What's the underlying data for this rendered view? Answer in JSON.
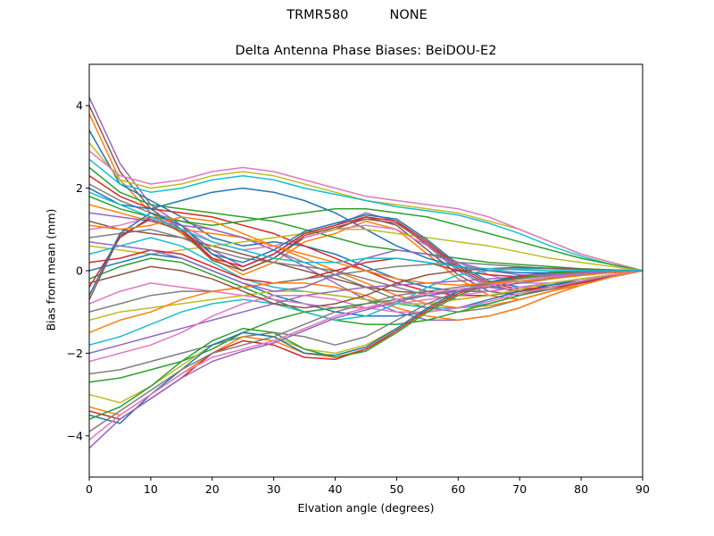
{
  "figure": {
    "suptitle": "TRMR580          NONE"
  },
  "chart_data": {
    "type": "line",
    "title": "Delta Antenna Phase Biases: BeiDOU-E2",
    "xlabel": "Elvation angle (degrees)",
    "ylabel": "Bias from mean (mm)",
    "xlim": [
      0,
      90
    ],
    "ylim": [
      -5,
      5
    ],
    "xticks": [
      0,
      10,
      20,
      30,
      40,
      50,
      60,
      70,
      80,
      90
    ],
    "yticks": [
      -4,
      -2,
      0,
      2,
      4
    ],
    "grid": false,
    "legend": "none",
    "x": [
      0,
      5,
      10,
      15,
      20,
      25,
      30,
      35,
      40,
      45,
      50,
      55,
      60,
      65,
      70,
      75,
      80,
      85,
      90
    ],
    "series": [
      {
        "values": [
          4.2,
          2.6,
          1.6,
          1.1,
          0.5,
          0.1,
          0.4,
          0.9,
          1.1,
          1.4,
          1.2,
          0.6,
          0.0,
          -0.4,
          -0.5,
          -0.4,
          -0.3,
          -0.15,
          0.0
        ],
        "color": "#9467bd"
      },
      {
        "values": [
          4.0,
          2.4,
          1.5,
          1.0,
          0.4,
          0.0,
          0.3,
          0.8,
          1.0,
          1.3,
          1.1,
          0.5,
          -0.1,
          -0.5,
          -0.6,
          -0.45,
          -0.3,
          -0.15,
          0.0
        ],
        "color": "#8c564b"
      },
      {
        "values": [
          3.8,
          2.2,
          1.4,
          0.9,
          0.3,
          -0.1,
          0.2,
          0.7,
          0.9,
          1.2,
          1.0,
          0.4,
          -0.2,
          -0.6,
          -0.7,
          -0.5,
          -0.35,
          -0.15,
          0.0
        ],
        "color": "#ff7f0e"
      },
      {
        "values": [
          3.4,
          2.1,
          1.7,
          1.3,
          0.8,
          0.6,
          0.7,
          0.6,
          0.4,
          0.1,
          -0.2,
          -0.4,
          -0.5,
          -0.5,
          -0.4,
          -0.3,
          -0.2,
          -0.1,
          0.0
        ],
        "color": "#1f77b4"
      },
      {
        "values": [
          3.1,
          2.2,
          2.0,
          2.1,
          2.3,
          2.4,
          2.3,
          2.1,
          1.9,
          1.7,
          1.6,
          1.5,
          1.4,
          1.2,
          1.0,
          0.7,
          0.4,
          0.2,
          0.0
        ],
        "color": "#bcbd22"
      },
      {
        "values": [
          2.9,
          2.3,
          2.1,
          2.2,
          2.4,
          2.5,
          2.4,
          2.2,
          2.0,
          1.8,
          1.7,
          1.6,
          1.5,
          1.3,
          1.0,
          0.7,
          0.4,
          0.2,
          0.0
        ],
        "color": "#e377c2"
      },
      {
        "values": [
          2.7,
          2.1,
          1.9,
          2.0,
          2.2,
          2.3,
          2.2,
          2.0,
          1.85,
          1.7,
          1.55,
          1.45,
          1.35,
          1.15,
          0.9,
          0.6,
          0.35,
          0.15,
          0.0
        ],
        "color": "#17becf"
      },
      {
        "values": [
          2.5,
          1.9,
          1.6,
          1.5,
          1.4,
          1.3,
          1.2,
          1.0,
          0.8,
          0.6,
          0.5,
          0.4,
          0.3,
          0.2,
          0.15,
          0.1,
          0.05,
          0.02,
          0.0
        ],
        "color": "#2ca02c"
      },
      {
        "values": [
          2.3,
          1.8,
          1.5,
          1.4,
          1.3,
          1.1,
          0.9,
          0.6,
          0.3,
          0.0,
          -0.3,
          -0.5,
          -0.6,
          -0.6,
          -0.5,
          -0.35,
          -0.2,
          -0.1,
          0.0
        ],
        "color": "#d62728"
      },
      {
        "values": [
          2.1,
          1.7,
          1.4,
          1.2,
          1.0,
          0.8,
          0.5,
          0.2,
          -0.1,
          -0.4,
          -0.7,
          -0.9,
          -1.0,
          -0.9,
          -0.7,
          -0.5,
          -0.3,
          -0.15,
          0.0
        ],
        "color": "#7f7f7f"
      },
      {
        "values": [
          2.0,
          1.6,
          1.5,
          1.7,
          1.9,
          2.0,
          1.9,
          1.7,
          1.4,
          1.0,
          0.6,
          0.3,
          0.1,
          0.0,
          -0.05,
          -0.05,
          -0.03,
          -0.01,
          0.0
        ],
        "color": "#1f77b4"
      },
      {
        "values": [
          1.8,
          1.5,
          1.3,
          1.2,
          1.1,
          1.2,
          1.3,
          1.4,
          1.5,
          1.5,
          1.4,
          1.3,
          1.1,
          0.9,
          0.7,
          0.5,
          0.3,
          0.15,
          0.0
        ],
        "color": "#2ca02c"
      },
      {
        "values": [
          1.6,
          1.4,
          1.2,
          1.0,
          0.9,
          0.8,
          0.6,
          0.3,
          0.0,
          -0.3,
          -0.6,
          -0.8,
          -0.9,
          -0.85,
          -0.7,
          -0.5,
          -0.3,
          -0.15,
          0.0
        ],
        "color": "#ff7f0e"
      },
      {
        "values": [
          1.4,
          1.3,
          1.2,
          1.1,
          1.0,
          0.8,
          0.5,
          0.1,
          -0.3,
          -0.7,
          -1.0,
          -1.2,
          -1.2,
          -1.1,
          -0.9,
          -0.6,
          -0.35,
          -0.15,
          0.0
        ],
        "color": "#9467bd"
      },
      {
        "values": [
          1.2,
          1.0,
          0.9,
          0.8,
          0.6,
          0.4,
          0.2,
          0.0,
          -0.2,
          -0.4,
          -0.5,
          -0.55,
          -0.5,
          -0.4,
          -0.3,
          -0.2,
          -0.1,
          -0.05,
          0.0
        ],
        "color": "#8c564b"
      },
      {
        "values": [
          1.0,
          1.1,
          1.3,
          1.1,
          0.7,
          0.5,
          0.6,
          0.8,
          1.0,
          1.1,
          1.0,
          0.6,
          0.2,
          -0.1,
          -0.3,
          -0.3,
          -0.2,
          -0.1,
          0.0
        ],
        "color": "#e377c2"
      },
      {
        "values": [
          0.8,
          0.9,
          1.0,
          0.8,
          0.5,
          0.3,
          0.2,
          0.1,
          0.0,
          -0.2,
          -0.4,
          -0.6,
          -0.7,
          -0.6,
          -0.5,
          -0.35,
          -0.2,
          -0.1,
          0.0
        ],
        "color": "#7f7f7f"
      },
      {
        "values": [
          0.6,
          0.5,
          0.4,
          0.5,
          0.6,
          0.7,
          0.8,
          0.9,
          1.0,
          1.0,
          0.9,
          0.8,
          0.7,
          0.6,
          0.45,
          0.3,
          0.2,
          0.1,
          0.0
        ],
        "color": "#bcbd22"
      },
      {
        "values": [
          0.4,
          0.6,
          0.8,
          0.6,
          0.2,
          -0.2,
          -0.4,
          -0.5,
          -0.6,
          -0.7,
          -0.8,
          -0.9,
          -0.9,
          -0.8,
          -0.6,
          -0.4,
          -0.25,
          -0.1,
          0.0
        ],
        "color": "#17becf"
      },
      {
        "values": [
          0.2,
          0.3,
          0.5,
          0.4,
          0.1,
          -0.2,
          -0.3,
          -0.2,
          0.0,
          0.2,
          0.3,
          0.2,
          0.0,
          -0.1,
          -0.15,
          -0.1,
          -0.05,
          -0.02,
          0.0
        ],
        "color": "#d62728"
      },
      {
        "values": [
          0.0,
          0.2,
          0.4,
          0.3,
          0.0,
          -0.3,
          -0.6,
          -0.8,
          -1.0,
          -1.1,
          -1.1,
          -1.0,
          -0.9,
          -0.7,
          -0.5,
          -0.35,
          -0.2,
          -0.1,
          0.0
        ],
        "color": "#1f77b4"
      },
      {
        "values": [
          -0.2,
          0.1,
          0.3,
          0.2,
          -0.1,
          -0.4,
          -0.7,
          -1.0,
          -1.2,
          -1.3,
          -1.3,
          -1.2,
          -1.0,
          -0.8,
          -0.6,
          -0.4,
          -0.25,
          -0.1,
          0.0
        ],
        "color": "#2ca02c"
      },
      {
        "values": [
          -0.4,
          0.8,
          1.3,
          1.0,
          0.3,
          0.1,
          0.4,
          0.9,
          1.1,
          1.3,
          1.2,
          0.7,
          0.1,
          -0.3,
          -0.45,
          -0.4,
          -0.3,
          -0.15,
          0.0
        ],
        "color": "#d62728"
      },
      {
        "values": [
          -0.6,
          0.9,
          1.4,
          1.1,
          0.4,
          0.2,
          0.5,
          0.95,
          1.15,
          1.35,
          1.25,
          0.75,
          0.15,
          -0.25,
          -0.4,
          -0.35,
          -0.25,
          -0.12,
          0.0
        ],
        "color": "#1f77b4"
      },
      {
        "values": [
          -0.7,
          0.85,
          1.25,
          0.95,
          0.25,
          0.0,
          0.3,
          0.85,
          1.05,
          1.25,
          1.15,
          0.65,
          0.05,
          -0.35,
          -0.5,
          -0.4,
          -0.28,
          -0.13,
          0.0
        ],
        "color": "#8c564b"
      },
      {
        "values": [
          -0.8,
          -0.5,
          -0.3,
          -0.4,
          -0.5,
          -0.6,
          -0.7,
          -0.8,
          -0.9,
          -0.9,
          -0.8,
          -0.7,
          -0.6,
          -0.5,
          -0.4,
          -0.3,
          -0.2,
          -0.1,
          0.0
        ],
        "color": "#e377c2"
      },
      {
        "values": [
          -1.0,
          -0.8,
          -0.6,
          -0.5,
          -0.5,
          -0.4,
          -0.3,
          -0.2,
          -0.1,
          0.0,
          0.1,
          0.15,
          0.2,
          0.15,
          0.1,
          0.05,
          0.03,
          0.01,
          0.0
        ],
        "color": "#7f7f7f"
      },
      {
        "values": [
          -1.2,
          -1.0,
          -0.9,
          -0.8,
          -0.7,
          -0.6,
          -0.5,
          -0.5,
          -0.6,
          -0.7,
          -0.8,
          -0.8,
          -0.7,
          -0.6,
          -0.45,
          -0.3,
          -0.2,
          -0.1,
          0.0
        ],
        "color": "#bcbd22"
      },
      {
        "values": [
          -1.5,
          -1.2,
          -1.0,
          -0.7,
          -0.5,
          -0.4,
          -0.3,
          -0.3,
          -0.4,
          -0.6,
          -0.9,
          -1.1,
          -1.2,
          -1.1,
          -0.9,
          -0.6,
          -0.35,
          -0.15,
          0.0
        ],
        "color": "#ff7f0e"
      },
      {
        "values": [
          -1.8,
          -1.6,
          -1.3,
          -1.0,
          -0.8,
          -0.7,
          -0.8,
          -1.0,
          -1.2,
          -1.1,
          -0.8,
          -0.4,
          -0.1,
          0.0,
          0.05,
          0.05,
          0.03,
          0.01,
          0.0
        ],
        "color": "#17becf"
      },
      {
        "values": [
          -2.0,
          -1.8,
          -1.6,
          -1.4,
          -1.2,
          -1.0,
          -0.8,
          -0.6,
          -0.5,
          -0.4,
          -0.35,
          -0.3,
          -0.25,
          -0.2,
          -0.15,
          -0.1,
          -0.05,
          -0.02,
          0.0
        ],
        "color": "#9467bd"
      },
      {
        "values": [
          -2.2,
          -2.0,
          -1.8,
          -1.5,
          -1.1,
          -0.8,
          -0.6,
          -0.6,
          -0.7,
          -0.9,
          -1.0,
          -1.0,
          -0.9,
          -0.75,
          -0.55,
          -0.4,
          -0.25,
          -0.1,
          0.0
        ],
        "color": "#e377c2"
      },
      {
        "values": [
          -2.5,
          -2.4,
          -2.2,
          -2.0,
          -1.8,
          -1.6,
          -1.5,
          -1.6,
          -1.8,
          -1.6,
          -1.2,
          -0.8,
          -0.5,
          -0.3,
          -0.2,
          -0.1,
          -0.05,
          -0.02,
          0.0
        ],
        "color": "#7f7f7f"
      },
      {
        "values": [
          -2.7,
          -2.6,
          -2.4,
          -2.2,
          -1.9,
          -1.5,
          -1.2,
          -1.0,
          -0.9,
          -0.8,
          -0.7,
          -0.6,
          -0.5,
          -0.4,
          -0.3,
          -0.2,
          -0.1,
          -0.05,
          0.0
        ],
        "color": "#2ca02c"
      },
      {
        "values": [
          -3.0,
          -3.2,
          -2.8,
          -2.3,
          -1.8,
          -1.5,
          -1.6,
          -1.9,
          -2.0,
          -1.8,
          -1.4,
          -0.9,
          -0.5,
          -0.3,
          -0.15,
          -0.05,
          -0.02,
          0.0,
          0.0
        ],
        "color": "#bcbd22"
      },
      {
        "values": [
          -3.3,
          -3.5,
          -3.0,
          -2.5,
          -2.0,
          -1.6,
          -1.7,
          -2.0,
          -2.1,
          -1.9,
          -1.5,
          -1.0,
          -0.6,
          -0.35,
          -0.2,
          -0.08,
          -0.03,
          0.0,
          0.0
        ],
        "color": "#ff7f0e"
      },
      {
        "values": [
          -3.4,
          -3.6,
          -3.1,
          -2.6,
          -2.0,
          -1.7,
          -1.8,
          -2.1,
          -2.15,
          -1.9,
          -1.45,
          -0.95,
          -0.55,
          -0.3,
          -0.15,
          -0.05,
          -0.02,
          0.0,
          0.0
        ],
        "color": "#d62728"
      },
      {
        "values": [
          -3.5,
          -3.7,
          -3.0,
          -2.4,
          -1.8,
          -1.5,
          -1.6,
          -2.0,
          -2.05,
          -1.85,
          -1.4,
          -0.9,
          -0.5,
          -0.28,
          -0.12,
          -0.04,
          -0.01,
          0.0,
          0.0
        ],
        "color": "#1f77b4"
      },
      {
        "values": [
          -3.6,
          -3.3,
          -2.8,
          -2.2,
          -1.7,
          -1.4,
          -1.5,
          -1.9,
          -2.1,
          -1.95,
          -1.5,
          -1.0,
          -0.6,
          -0.32,
          -0.18,
          -0.06,
          -0.02,
          0.0,
          0.0
        ],
        "color": "#2ca02c"
      },
      {
        "values": [
          -3.9,
          -3.4,
          -2.9,
          -2.4,
          -2.0,
          -1.8,
          -1.6,
          -1.3,
          -1.0,
          -0.8,
          -0.6,
          -0.5,
          -0.4,
          -0.3,
          -0.2,
          -0.12,
          -0.06,
          -0.02,
          0.0
        ],
        "color": "#7f7f7f"
      },
      {
        "values": [
          -4.1,
          -3.5,
          -3.0,
          -2.5,
          -2.1,
          -1.9,
          -1.7,
          -1.4,
          -1.1,
          -0.9,
          -0.7,
          -0.55,
          -0.45,
          -0.35,
          -0.25,
          -0.15,
          -0.08,
          -0.03,
          0.0
        ],
        "color": "#e377c2"
      },
      {
        "values": [
          -4.3,
          -3.6,
          -3.1,
          -2.6,
          -2.2,
          -1.95,
          -1.75,
          -1.45,
          -1.15,
          -0.95,
          -0.75,
          -0.6,
          -0.5,
          -0.4,
          -0.3,
          -0.18,
          -0.1,
          -0.04,
          0.0
        ],
        "color": "#9467bd"
      },
      {
        "values": [
          1.1,
          1.0,
          1.1,
          1.3,
          1.2,
          0.9,
          0.6,
          0.4,
          0.2,
          0.0,
          -0.2,
          -0.3,
          -0.35,
          -0.3,
          -0.25,
          -0.2,
          -0.12,
          -0.05,
          0.0
        ],
        "color": "#ff7f0e"
      },
      {
        "values": [
          0.7,
          0.6,
          0.5,
          0.3,
          0.0,
          -0.3,
          -0.5,
          -0.4,
          -0.1,
          0.3,
          0.5,
          0.4,
          0.2,
          0.0,
          -0.1,
          -0.1,
          -0.05,
          -0.02,
          0.0
        ],
        "color": "#9467bd"
      },
      {
        "values": [
          -0.3,
          -0.1,
          0.1,
          0.0,
          -0.2,
          -0.5,
          -0.8,
          -0.9,
          -0.8,
          -0.6,
          -0.3,
          -0.1,
          0.0,
          0.05,
          0.08,
          0.06,
          0.04,
          0.02,
          0.0
        ],
        "color": "#8c564b"
      },
      {
        "values": [
          1.9,
          1.6,
          1.3,
          1.0,
          0.7,
          0.5,
          0.3,
          0.2,
          0.2,
          0.3,
          0.3,
          0.2,
          0.1,
          0.05,
          0.02,
          0.0,
          0.0,
          0.0,
          0.0
        ],
        "color": "#17becf"
      }
    ]
  }
}
